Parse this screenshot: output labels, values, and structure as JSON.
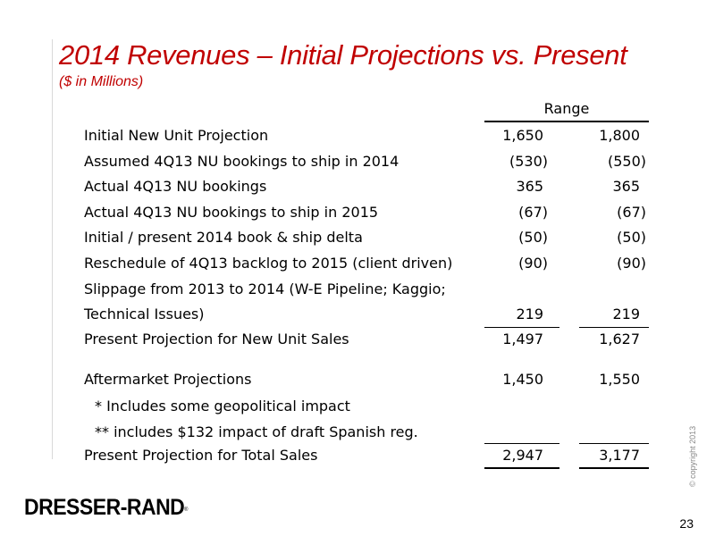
{
  "header": {
    "title": "2014 Revenues – Initial Projections vs. Present",
    "subtitle": "($ in Millions)",
    "range_label": "Range"
  },
  "rows": [
    {
      "label": "Initial New Unit Projection",
      "v1": "1,650",
      "v2": "1,800"
    },
    {
      "label": "Assumed 4Q13 NU bookings to ship in 2014",
      "v1": "(530)",
      "v2": "(550)"
    },
    {
      "label": "Actual 4Q13 NU bookings",
      "v1": "365",
      "v2": "365"
    },
    {
      "label": "Actual 4Q13 NU bookings to ship in 2015",
      "v1": "(67)",
      "v2": "(67)"
    },
    {
      "label": "Initial / present 2014 book & ship delta",
      "v1": "(50)",
      "v2": "(50)"
    },
    {
      "label": "Reschedule of 4Q13 backlog to 2015 (client driven)",
      "v1": "(90)",
      "v2": "(90)"
    },
    {
      "label": "Slippage from 2013 to 2014 (W-E Pipeline; Kaggio;",
      "v1": "",
      "v2": ""
    },
    {
      "label": "Technical Issues)",
      "v1": "219",
      "v2": "219"
    },
    {
      "label": "Present Projection for New Unit Sales",
      "v1": "1,497",
      "v2": "1,627"
    },
    {
      "label": "Aftermarket Projections",
      "v1": "1,450",
      "v2": "1,550"
    },
    {
      "label": "* Includes some geopolitical impact",
      "v1": "",
      "v2": ""
    },
    {
      "label": "** includes $132 impact of draft Spanish reg.",
      "v1": "",
      "v2": ""
    },
    {
      "label": "Present Projection for Total Sales",
      "v1": "2,947",
      "v2": "3,177"
    }
  ],
  "footer": {
    "logo": "DRESSER-RAND",
    "logo_reg": "®",
    "page_number": "23",
    "copyright": "© copyright 2013"
  }
}
